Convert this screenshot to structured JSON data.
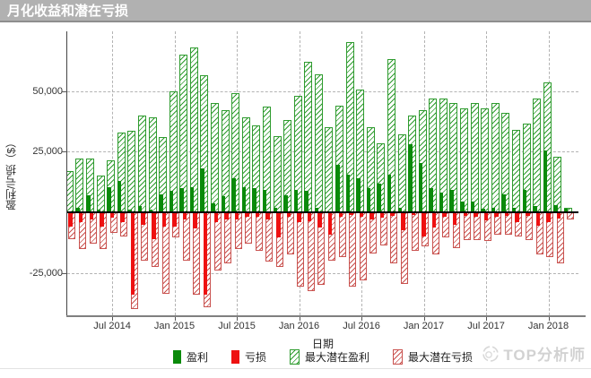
{
  "title_bar": {
    "title": "月化收益和潜在亏损",
    "bg": "#b1b1b1",
    "text_color": "#ffffff"
  },
  "watermark": {
    "text": "TOP分析师",
    "icon": "sketch-circle-icon",
    "color": "#d2d2d2"
  },
  "chart_data": {
    "type": "bar",
    "title": "月化收益和潜在亏损",
    "xlabel": "日期",
    "ylabel": "盈利/亏损（$）",
    "grid": true,
    "legend_position": "bottom",
    "ylim": [
      -42500,
      74500
    ],
    "ytick_values": [
      50000,
      25000,
      -25000
    ],
    "ytick_labels": [
      "50,000",
      "25,000",
      "-25,000"
    ],
    "xtick_labels": [
      "Jul 2014",
      "Jan 2015",
      "Jul 2015",
      "Jan 2016",
      "Jul 2016",
      "Jan 2017",
      "Jul 2017",
      "Jan 2018"
    ],
    "xtick_month_index": [
      4,
      10,
      16,
      22,
      28,
      34,
      40,
      46
    ],
    "months": [
      "2014-03",
      "2014-04",
      "2014-05",
      "2014-06",
      "2014-07",
      "2014-08",
      "2014-09",
      "2014-10",
      "2014-11",
      "2014-12",
      "2015-01",
      "2015-02",
      "2015-03",
      "2015-04",
      "2015-05",
      "2015-06",
      "2015-07",
      "2015-08",
      "2015-09",
      "2015-10",
      "2015-11",
      "2015-12",
      "2016-01",
      "2016-02",
      "2016-03",
      "2016-04",
      "2016-05",
      "2016-06",
      "2016-07",
      "2016-08",
      "2016-09",
      "2016-10",
      "2016-11",
      "2016-12",
      "2017-01",
      "2017-02",
      "2017-03",
      "2017-04",
      "2017-05",
      "2017-06",
      "2017-07",
      "2017-08",
      "2017-09",
      "2017-10",
      "2017-11",
      "2017-12",
      "2018-01",
      "2018-02",
      "2018-03"
    ],
    "series": [
      {
        "key": "profit",
        "name": "盈利",
        "style": "solid",
        "color": "#0a8a0a",
        "values": [
          500,
          2000,
          7000,
          1000,
          10500,
          13000,
          1000,
          2500,
          1000,
          7500,
          9000,
          10000,
          10500,
          18000,
          3700,
          6800,
          14200,
          10500,
          10000,
          9300,
          2000,
          7000,
          9300,
          9000,
          2000,
          500,
          19700,
          15400,
          14200,
          10000,
          11800,
          15400,
          2000,
          28000,
          20300,
          9900,
          8000,
          9300,
          4400,
          4400,
          1300,
          2000,
          7400,
          1900,
          9300,
          2500,
          25300,
          3000,
          1500
        ]
      },
      {
        "key": "loss",
        "name": "亏损",
        "style": "solid",
        "color": "#ee1111",
        "values": [
          -6000,
          -4000,
          -3000,
          -6000,
          -2200,
          -4000,
          -34000,
          -5000,
          -11000,
          -6000,
          -6000,
          -3000,
          -6700,
          -34000,
          -4200,
          -3000,
          -3000,
          -2000,
          -2000,
          -3000,
          -10400,
          -2000,
          -4200,
          -3600,
          -6100,
          -9200,
          -2000,
          -1000,
          -2000,
          -3000,
          -2400,
          -1500,
          -7300,
          -1000,
          -9800,
          -6100,
          -2000,
          -5000,
          -1500,
          -2000,
          -3500,
          -1800,
          -1500,
          -3900,
          -1500,
          -5500,
          -4000,
          -2500,
          -500
        ]
      },
      {
        "key": "max-profit",
        "name": "最大潜在盈利",
        "style": "hatched",
        "color": "#2e9b2e",
        "values": [
          17000,
          22000,
          22000,
          15000,
          21500,
          33000,
          33500,
          40000,
          39000,
          31000,
          50000,
          65000,
          68000,
          56500,
          45000,
          42000,
          49000,
          39000,
          36000,
          43500,
          31500,
          38000,
          48000,
          62000,
          57000,
          35000,
          44000,
          70000,
          50500,
          35000,
          28500,
          63000,
          32000,
          40000,
          42000,
          47000,
          46800,
          45000,
          43000,
          45000,
          43000,
          45000,
          41000,
          34000,
          36400,
          46800,
          53600,
          22800,
          2000
        ]
      },
      {
        "key": "max-loss",
        "name": "最大潜在亏损",
        "style": "hatched",
        "color": "#c9524f",
        "values": [
          -11000,
          -15000,
          -13000,
          -15000,
          -8500,
          -10000,
          -40000,
          -20000,
          -22500,
          -33500,
          -10500,
          -20000,
          -34000,
          -39000,
          -24000,
          -21000,
          -15000,
          -13000,
          -16000,
          -20300,
          -22600,
          -17200,
          -30700,
          -32500,
          -30000,
          -20000,
          -18400,
          -30700,
          -28200,
          -17000,
          -13500,
          -21000,
          -29500,
          -16000,
          -14100,
          -17200,
          -10400,
          -14700,
          -11600,
          -11600,
          -12000,
          -9200,
          -9200,
          -9800,
          -11600,
          -17200,
          -18400,
          -21000,
          -3000
        ]
      }
    ]
  }
}
